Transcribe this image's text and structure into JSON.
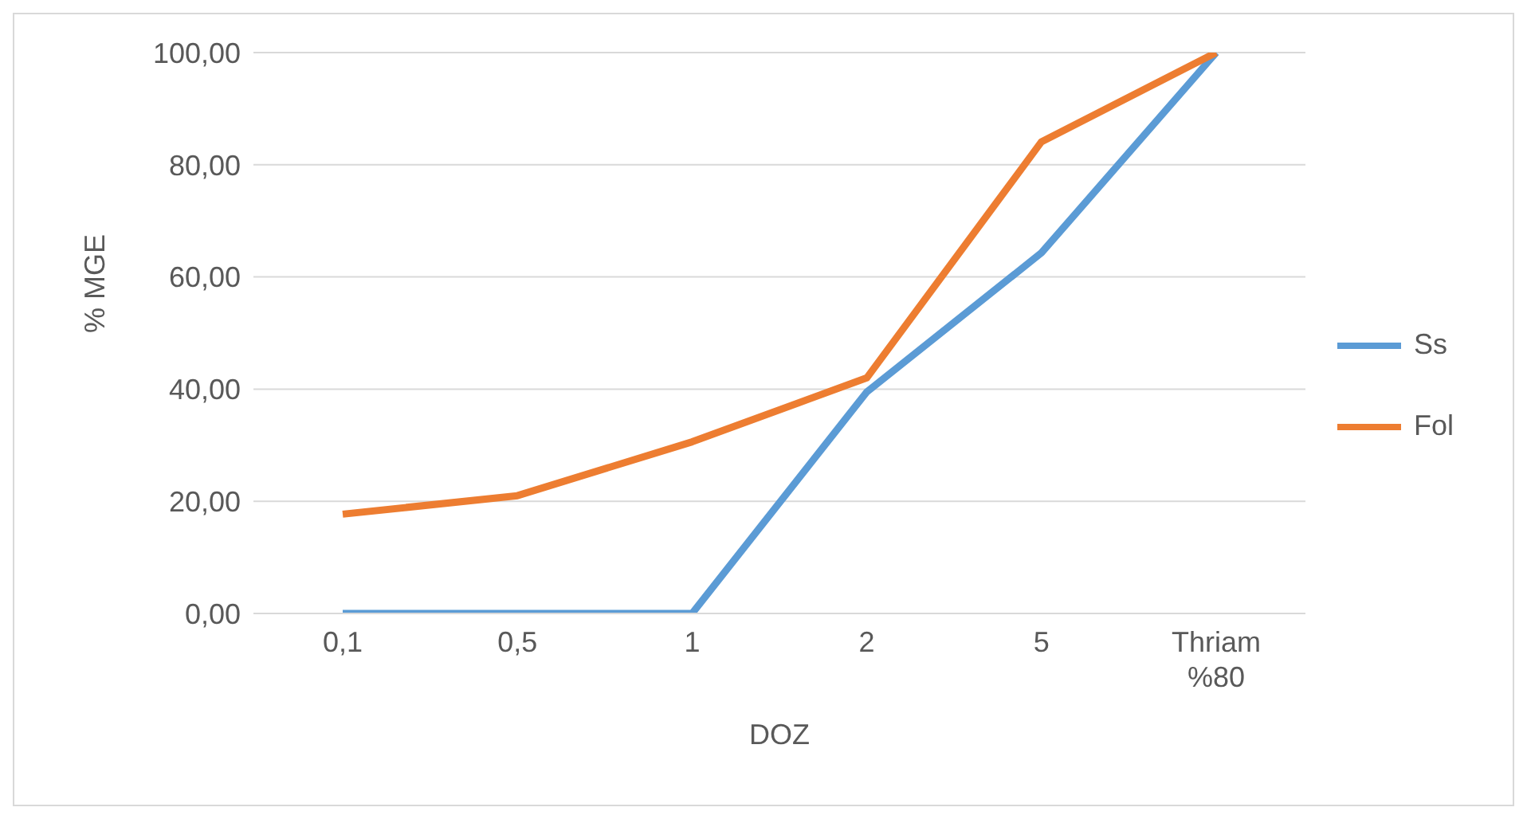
{
  "chart_data": {
    "type": "line",
    "xlabel": "DOZ",
    "ylabel": "% MGE",
    "categories": [
      "0,1",
      "0,5",
      "1",
      "2",
      "5",
      "Thriam %80"
    ],
    "series": [
      {
        "name": "Ss",
        "color": "#5b9bd5",
        "values": [
          0,
          0,
          0,
          39.5,
          64.3,
          100
        ]
      },
      {
        "name": "Fol",
        "color": "#ed7d31",
        "values": [
          17.7,
          21,
          30.6,
          42,
          84.1,
          100
        ]
      }
    ],
    "ylim": [
      0,
      100
    ],
    "yticks": [
      {
        "value": 0,
        "label": "0,00"
      },
      {
        "value": 20,
        "label": "20,00"
      },
      {
        "value": 40,
        "label": "40,00"
      },
      {
        "value": 60,
        "label": "60,00"
      },
      {
        "value": 80,
        "label": "80,00"
      },
      {
        "value": 100,
        "label": "100,00"
      }
    ],
    "grid": "y",
    "legend": "right",
    "marker": "none",
    "line_style": "solid"
  }
}
